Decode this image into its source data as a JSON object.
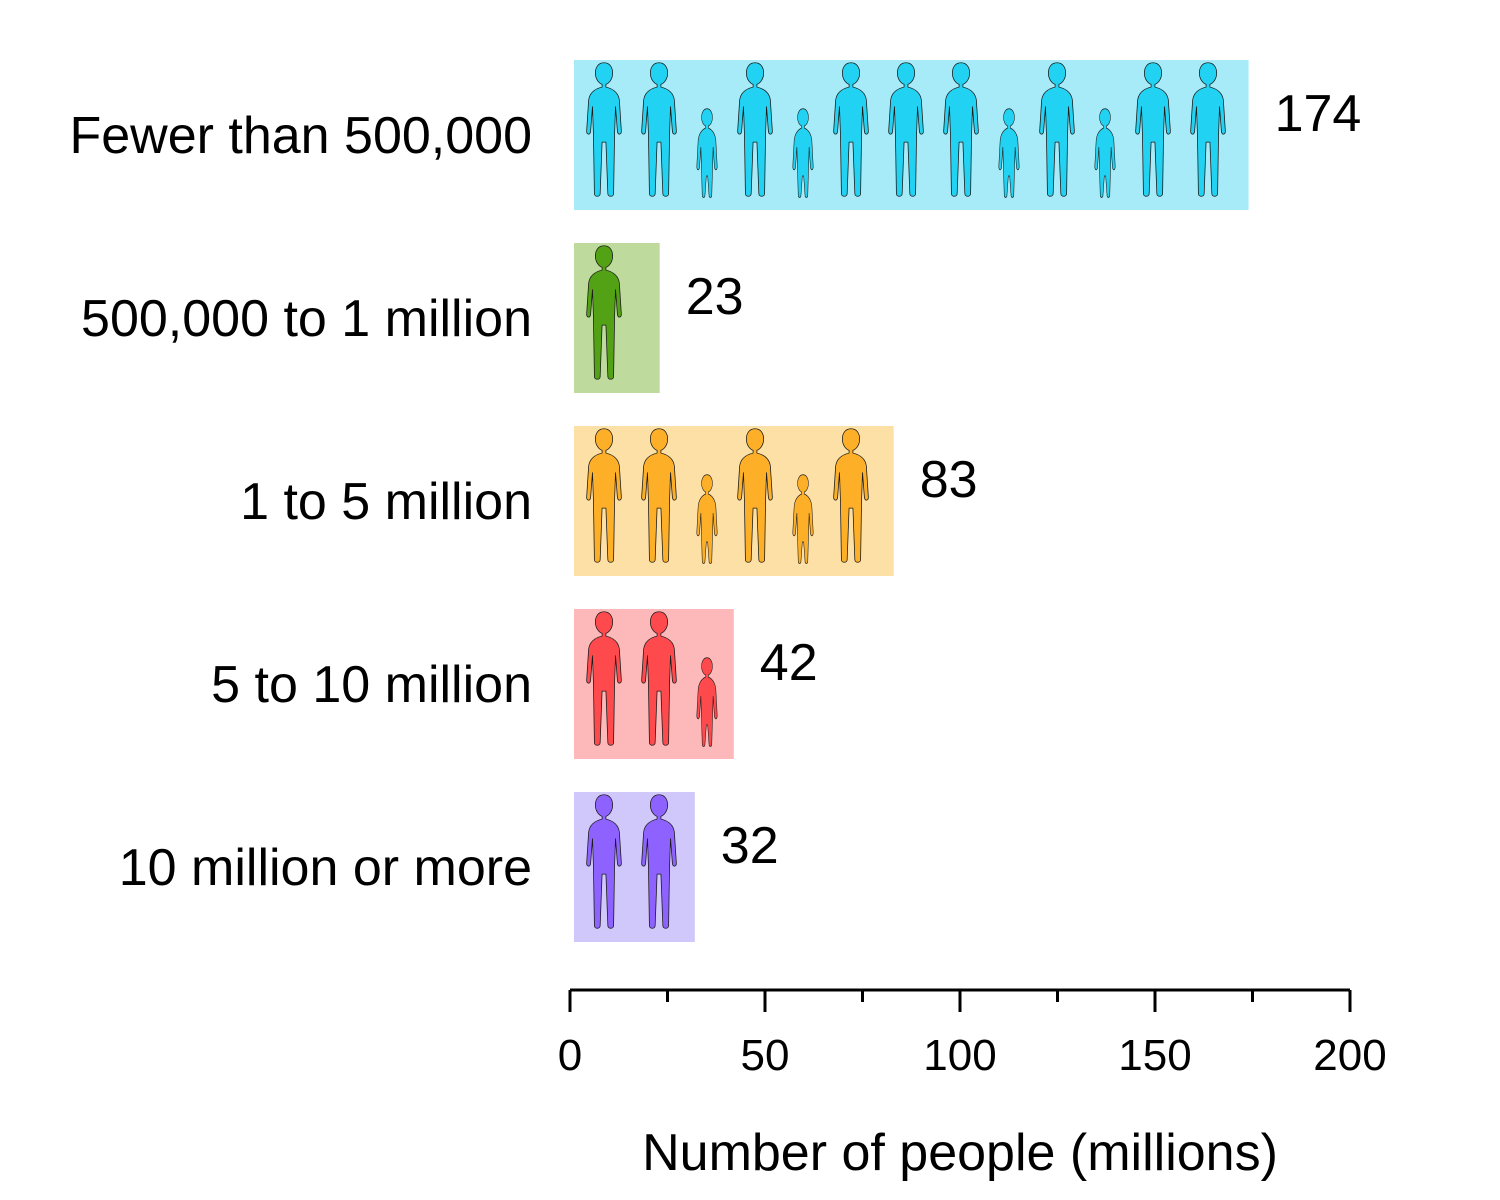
{
  "chart_data": {
    "type": "bar",
    "orientation": "horizontal",
    "categories": [
      "Fewer than 500,000",
      "500,000 to 1 million",
      "1 to 5 million",
      "5 to 10 million",
      "10 million or more"
    ],
    "values": [
      174,
      23,
      83,
      42,
      32
    ],
    "value_labels": [
      "174",
      "23",
      "83",
      "42",
      "32"
    ],
    "xlabel": "Number of people (millions)",
    "ylabel": "",
    "xlim": [
      0,
      200
    ],
    "x_ticks": [
      0,
      50,
      100,
      150,
      200
    ],
    "x_tick_labels": [
      "0",
      "50",
      "100",
      "150",
      "200"
    ],
    "grid": false,
    "bar_style": "pictogram",
    "icon": "person-silhouette-icon",
    "colors": {
      "bar_backgrounds": [
        "#a8ebf8",
        "#bedb9d",
        "#fde0a6",
        "#fdb8b9",
        "#d0c7fb"
      ],
      "figure_fills": [
        "#22d2f2",
        "#53a114",
        "#feaf28",
        "#fe4a4c",
        "#8e62fe"
      ],
      "text": "#000000",
      "axis": "#000000"
    }
  }
}
